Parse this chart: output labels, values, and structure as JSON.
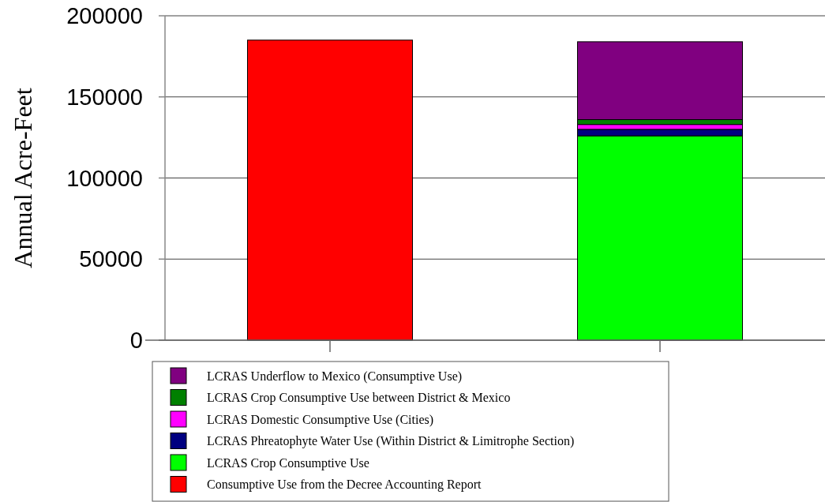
{
  "chart_data": {
    "type": "bar",
    "stacked": true,
    "ylabel": "Annual Acre-Feet",
    "categories": [
      null,
      null
    ],
    "ylim": [
      0,
      200000
    ],
    "yticks": [
      0,
      50000,
      100000,
      150000,
      200000
    ],
    "grid": "y",
    "legend": "bottom",
    "series": [
      {
        "name": "Consumptive Use from the Decree Accounting Report",
        "color": "#ff0000",
        "values": [
          185000,
          null
        ]
      },
      {
        "name": "LCRAS Crop Consumptive Use",
        "color": "#00ff00",
        "values": [
          null,
          126000
        ]
      },
      {
        "name": "LCRAS Phreatophyte Water Use (Within District & Limitrophe Section)",
        "color": "#000080",
        "values": [
          null,
          4000
        ]
      },
      {
        "name": "LCRAS Domestic Consumptive Use (Cities)",
        "color": "#ff00ff",
        "values": [
          null,
          3000
        ]
      },
      {
        "name": "LCRAS Crop Consumptive Use between District & Mexico",
        "color": "#008000",
        "values": [
          null,
          3000
        ]
      },
      {
        "name": "LCRAS Underflow to Mexico (Consumptive Use)",
        "color": "#800080",
        "values": [
          null,
          48000
        ]
      }
    ]
  }
}
